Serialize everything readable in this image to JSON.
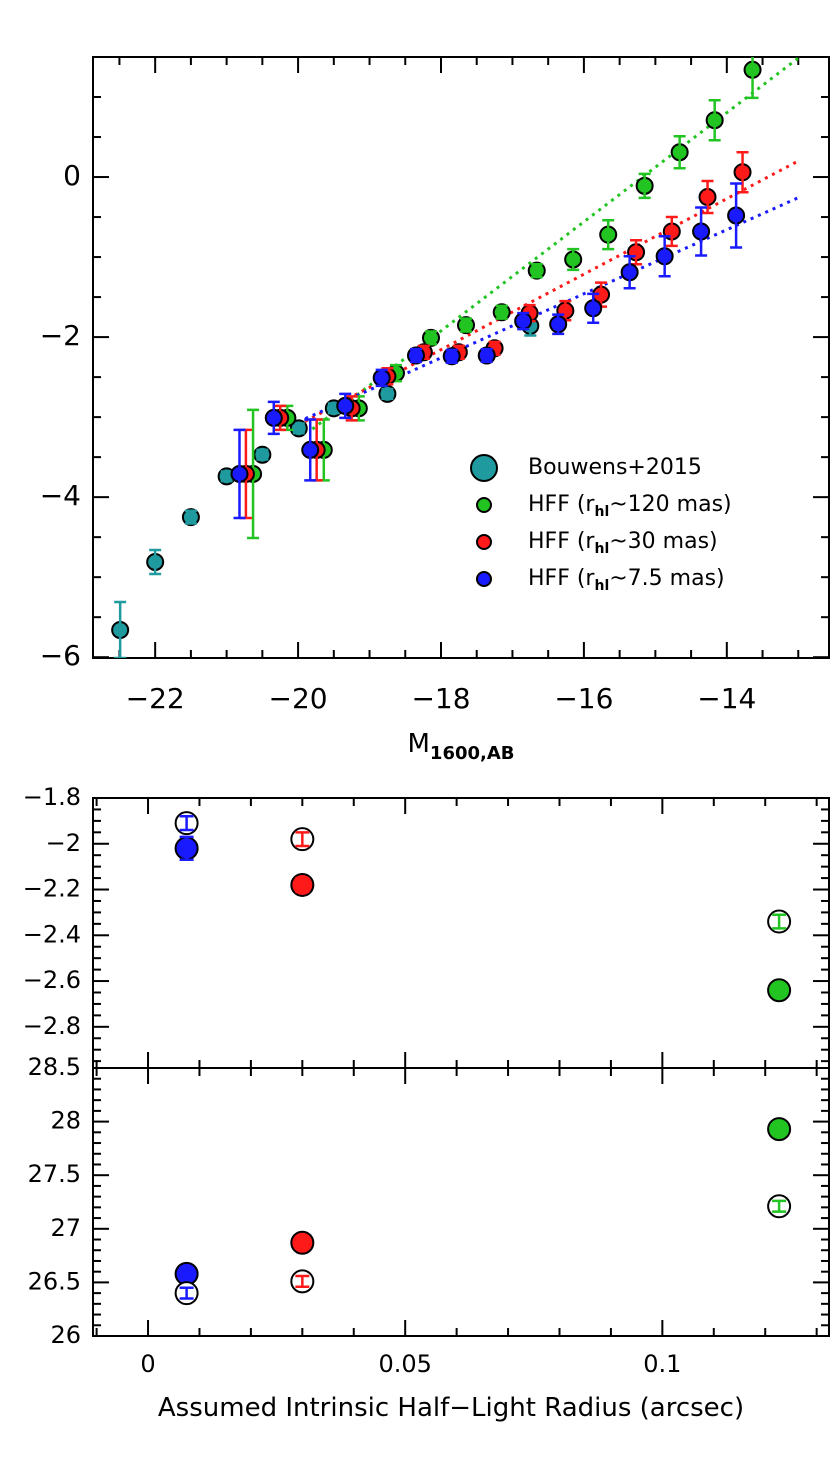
{
  "chart_data": [
    {
      "type": "scatter",
      "xlabel": "M",
      "xlabel_sub": "1600,AB",
      "xlim": [
        -22.87,
        -12.57
      ],
      "ylim": [
        -6.01,
        1.5
      ],
      "xticks": [
        {
          "value": -22,
          "label": "−22"
        },
        {
          "value": -20,
          "label": "−20"
        },
        {
          "value": -18,
          "label": "−18"
        },
        {
          "value": -16,
          "label": "−16"
        },
        {
          "value": -14,
          "label": "−14"
        }
      ],
      "yticks": [
        {
          "value": -6,
          "label": "−6"
        },
        {
          "value": -4,
          "label": "−4"
        },
        {
          "value": -2,
          "label": "−2"
        },
        0
      ],
      "legend": "lower right",
      "series": [
        {
          "name": "Bouwens+2015",
          "color": "#1f9a9e",
          "x": [
            -22.49,
            -22.0,
            -21.5,
            -21.0,
            -20.5,
            -19.99,
            -19.5,
            -18.75,
            -16.75
          ],
          "y": [
            -5.66,
            -4.81,
            -4.25,
            -3.74,
            -3.47,
            -3.14,
            -2.89,
            -2.71,
            -1.86
          ],
          "errors": [
            0.35,
            0.15,
            0.08,
            0.06,
            0.06,
            0.06,
            0.06,
            0.06,
            0.12
          ]
        },
        {
          "name": [
            "HFF (r",
            "hl",
            "~120 mas)"
          ],
          "color": "#22c422",
          "x": [
            -13.64,
            -14.17,
            -14.66,
            -15.15,
            -15.66,
            -16.15,
            -16.66,
            -17.15,
            -17.65,
            -18.14,
            -18.63,
            -19.15,
            -19.64,
            -20.15,
            -20.63
          ],
          "y": [
            1.34,
            0.71,
            0.31,
            -0.11,
            -0.72,
            -1.03,
            -1.17,
            -1.69,
            -1.85,
            -2.01,
            -2.45,
            -2.89,
            -3.41,
            -3.01,
            -3.71
          ],
          "errors": [
            0.35,
            0.25,
            0.2,
            0.15,
            0.18,
            0.13,
            0.08,
            0.08,
            0.08,
            0.08,
            0.1,
            0.15,
            0.38,
            0.15,
            0.8
          ]
        },
        {
          "name": [
            "HFF (r",
            "hl",
            "~30 mas)"
          ],
          "color": "#ff1a1a",
          "x": [
            -13.78,
            -14.27,
            -14.77,
            -15.27,
            -15.76,
            -16.26,
            -16.76,
            -17.25,
            -17.75,
            -18.24,
            -18.75,
            -19.25,
            -19.74,
            -20.25,
            -20.73
          ],
          "y": [
            0.06,
            -0.25,
            -0.68,
            -0.94,
            -1.47,
            -1.67,
            -1.7,
            -2.14,
            -2.19,
            -2.19,
            -2.49,
            -2.89,
            -3.41,
            -3.01,
            -3.71
          ],
          "errors": [
            0.25,
            0.2,
            0.18,
            0.15,
            0.15,
            0.12,
            0.1,
            0.08,
            0.08,
            0.08,
            0.1,
            0.15,
            0.38,
            0.15,
            0.55
          ]
        },
        {
          "name": [
            "HFF (r",
            "hl",
            "~7.5 mas)"
          ],
          "color": "#1a1aff",
          "x": [
            -13.87,
            -14.36,
            -14.87,
            -15.36,
            -15.87,
            -16.36,
            -16.85,
            -17.36,
            -17.85,
            -18.35,
            -18.83,
            -19.34,
            -19.83,
            -20.34,
            -20.82
          ],
          "y": [
            -0.48,
            -0.68,
            -0.99,
            -1.19,
            -1.64,
            -1.84,
            -1.8,
            -2.23,
            -2.24,
            -2.23,
            -2.51,
            -2.86,
            -3.41,
            -3.01,
            -3.71
          ],
          "errors": [
            0.4,
            0.3,
            0.25,
            0.2,
            0.18,
            0.12,
            0.1,
            0.08,
            0.08,
            0.08,
            0.1,
            0.15,
            0.38,
            0.2,
            0.55
          ]
        }
      ],
      "fits": [
        {
          "color": "#22c422",
          "x": [
            -19.8,
            -12.98
          ],
          "y": [
            -3.15,
            1.5
          ]
        },
        {
          "color": "#ff1a1a",
          "x": [
            -20.0,
            -12.98
          ],
          "y": [
            -3.1,
            0.21
          ]
        },
        {
          "color": "#1a1aff",
          "x": [
            -20.0,
            -12.98
          ],
          "y": [
            -3.06,
            -0.25
          ]
        }
      ]
    },
    {
      "type": "scatter",
      "xlim": [
        -0.0107,
        0.1324
      ],
      "ylim": [
        -2.98,
        -1.8
      ],
      "yticks": [
        {
          "value": -2.8,
          "label": "−2.8"
        },
        {
          "value": -2.6,
          "label": "−2.6"
        },
        {
          "value": -2.4,
          "label": "−2.4"
        },
        {
          "value": -2.2,
          "label": "−2.2"
        },
        {
          "value": -2,
          "label": "−2"
        },
        {
          "value": -1.8,
          "label": "−1.8"
        }
      ],
      "series": [
        {
          "color": "#1a1aff",
          "marker": "filled",
          "x": [
            0.0075
          ],
          "y": [
            -2.02
          ],
          "errors": [
            0.05
          ]
        },
        {
          "color": "#1a1aff",
          "marker": "open",
          "x": [
            0.0075
          ],
          "y": [
            -1.91
          ],
          "errors": [
            0.03
          ]
        },
        {
          "color": "#ff1a1a",
          "marker": "filled",
          "x": [
            0.03
          ],
          "y": [
            -2.18
          ],
          "errors": [
            0.03
          ]
        },
        {
          "color": "#ff1a1a",
          "marker": "open",
          "x": [
            0.03
          ],
          "y": [
            -1.98
          ],
          "errors": [
            0.03
          ]
        },
        {
          "color": "#22c422",
          "marker": "filled",
          "x": [
            0.1227
          ],
          "y": [
            -2.64
          ],
          "errors": [
            null
          ]
        },
        {
          "color": "#22c422",
          "marker": "open",
          "x": [
            0.1227
          ],
          "y": [
            -2.34
          ],
          "errors": [
            0.03
          ]
        }
      ]
    },
    {
      "type": "scatter",
      "xlabel": "Assumed Intrinsic Half−Light Radius (arcsec)",
      "xlim": [
        -0.0107,
        0.1324
      ],
      "ylim": [
        26,
        28.5
      ],
      "xticks": [
        0,
        0.05,
        0.1
      ],
      "yticks": [
        26,
        26.5,
        27,
        27.5,
        28,
        28.5
      ],
      "series": [
        {
          "color": "#1a1aff",
          "marker": "filled",
          "x": [
            0.0075
          ],
          "y": [
            26.58
          ],
          "errors": [
            null
          ]
        },
        {
          "color": "#1a1aff",
          "marker": "open",
          "x": [
            0.0075
          ],
          "y": [
            26.4
          ],
          "errors": [
            0.05
          ]
        },
        {
          "color": "#ff1a1a",
          "marker": "filled",
          "x": [
            0.03
          ],
          "y": [
            26.87
          ],
          "errors": [
            null
          ]
        },
        {
          "color": "#ff1a1a",
          "marker": "open",
          "x": [
            0.03
          ],
          "y": [
            26.51
          ],
          "errors": [
            0.05
          ]
        },
        {
          "color": "#22c422",
          "marker": "filled",
          "x": [
            0.1227
          ],
          "y": [
            27.93
          ],
          "errors": [
            null
          ]
        },
        {
          "color": "#22c422",
          "marker": "open",
          "x": [
            0.1227
          ],
          "y": [
            27.21
          ],
          "errors": [
            0.05
          ]
        }
      ]
    }
  ]
}
